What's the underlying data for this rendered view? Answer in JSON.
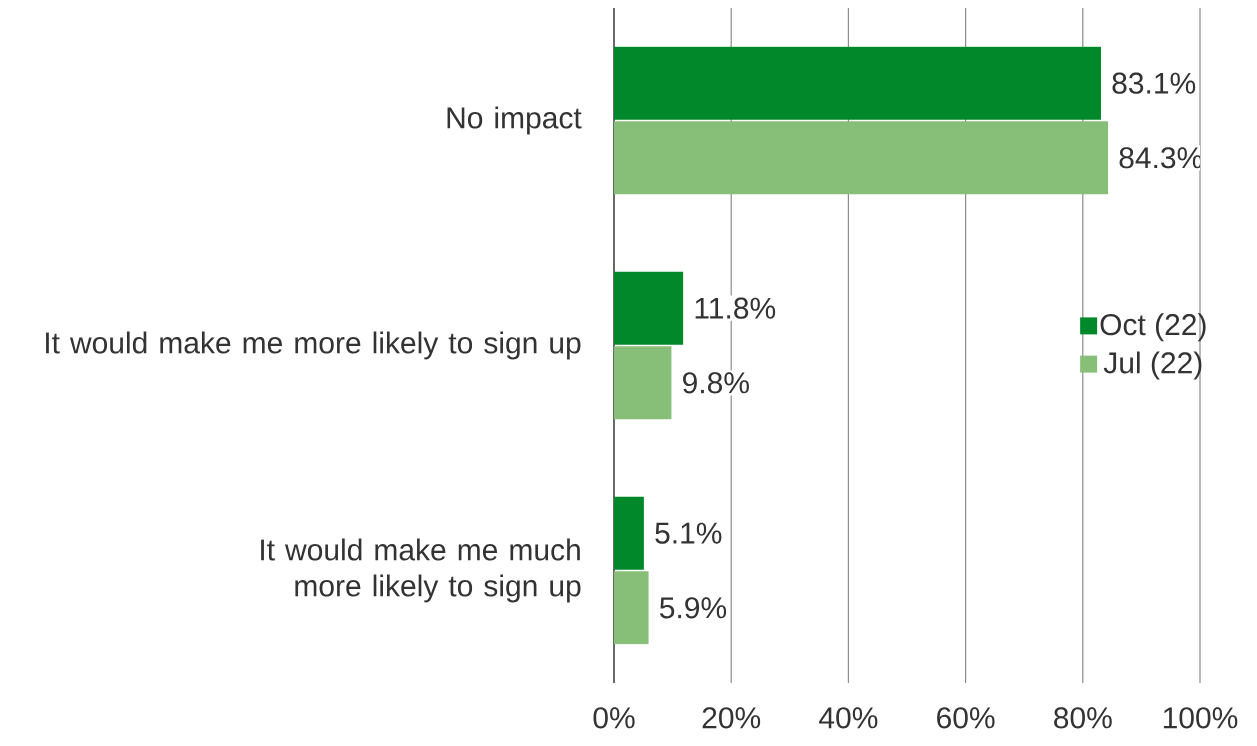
{
  "chart_data": {
    "type": "bar",
    "orientation": "horizontal",
    "categories": [
      "No impact",
      "It would make me more likely to sign up",
      "It would make me much more likely to sign up"
    ],
    "series": [
      {
        "name": "Oct (22)",
        "color": "#00882b",
        "values": [
          83.1,
          11.8,
          5.1
        ],
        "value_labels": [
          "83.1%",
          "11.8%",
          "5.1%"
        ]
      },
      {
        "name": "Jul (22)",
        "color": "#88bf78",
        "values": [
          84.3,
          9.8,
          5.9
        ],
        "value_labels": [
          "84.3%",
          "9.8%",
          "5.9%"
        ]
      }
    ],
    "xlim": [
      0,
      100
    ],
    "xticks": [
      {
        "value": 0,
        "label": "0%"
      },
      {
        "value": 20,
        "label": "20%"
      },
      {
        "value": 40,
        "label": "40%"
      },
      {
        "value": 60,
        "label": "60%"
      },
      {
        "value": 80,
        "label": "80%"
      },
      {
        "value": 100,
        "label": "100%"
      }
    ],
    "grid": "x",
    "legend": "right"
  }
}
